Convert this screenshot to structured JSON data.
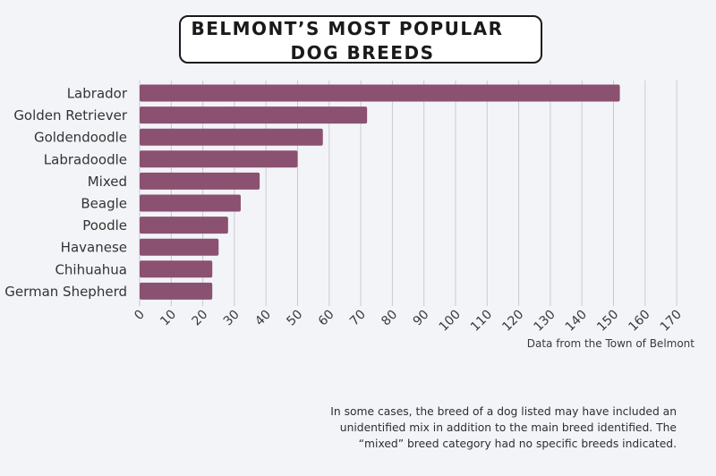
{
  "title": {
    "line1": "BELMONT’S MOST POPULAR",
    "line2": "DOG BREEDS"
  },
  "source": "Data from the Town of Belmont",
  "footnote": {
    "line1": "In some cases, the breed of a dog listed may have included an",
    "line2": "unidentified mix in addition to the main breed identified. The",
    "line3": "“mixed” breed category had no specific breeds indicated."
  },
  "colors": {
    "bar": "#8b5170",
    "grid": "#c9cacf",
    "background": "#f3f4f8"
  },
  "chart_data": {
    "type": "bar",
    "orientation": "horizontal",
    "categories": [
      "Labrador",
      "Golden Retriever",
      "Goldendoodle",
      "Labradoodle",
      "Mixed",
      "Beagle",
      "Poodle",
      "Havanese",
      "Chihuahua",
      "German Shepherd"
    ],
    "values": [
      152,
      72,
      58,
      50,
      38,
      32,
      28,
      25,
      23,
      23
    ],
    "xlim": [
      0,
      170
    ],
    "xticks": [
      "0",
      "10",
      "20",
      "30",
      "40",
      "50",
      "60",
      "70",
      "80",
      "90",
      "100",
      "110",
      "120",
      "130",
      "140",
      "150",
      "160",
      "170"
    ],
    "grid": true,
    "legend": "none"
  }
}
